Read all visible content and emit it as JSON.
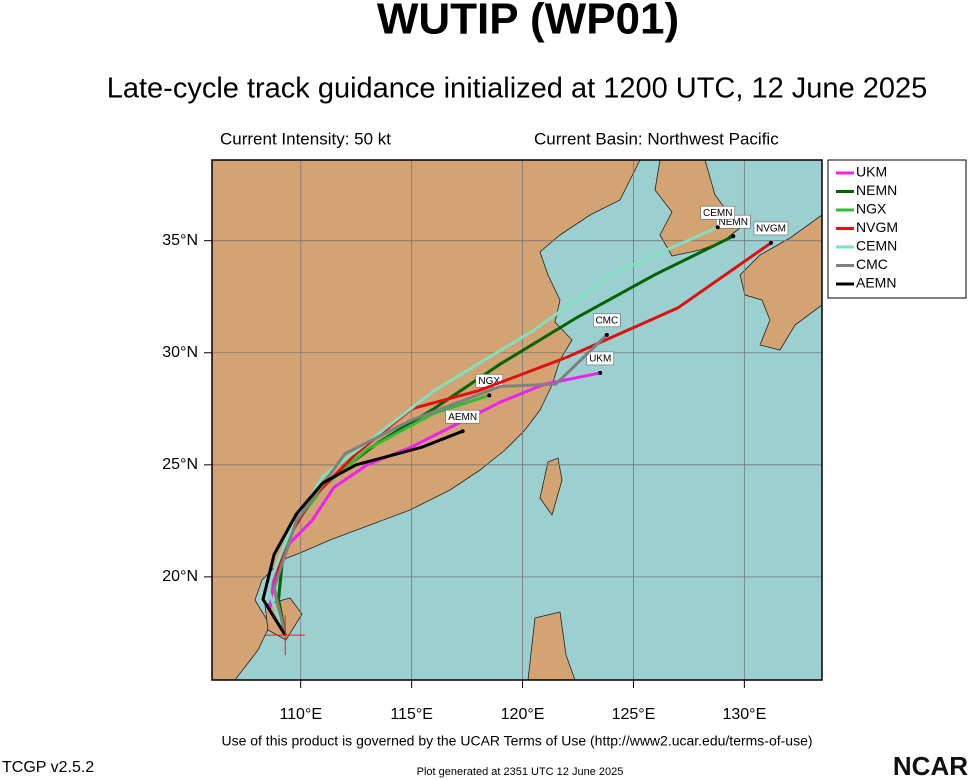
{
  "chart_data": {
    "type": "track-map",
    "title": "WUTIP (WP01)",
    "subtitle": "Late-cycle track guidance initialized at 1200 UTC, 12 June 2025",
    "intensity_text": "Current Intensity: 50 kt",
    "basin_text": "Current Basin: Northwest Pacific",
    "xlim": [
      106,
      133.5
    ],
    "ylim": [
      15.4,
      38.6
    ],
    "xticks": [
      {
        "value": 110,
        "label": "110°E"
      },
      {
        "value": 115,
        "label": "115°E"
      },
      {
        "value": 120,
        "label": "120°E"
      },
      {
        "value": 125,
        "label": "125°E"
      },
      {
        "value": 130,
        "label": "130°E"
      }
    ],
    "yticks": [
      {
        "value": 20,
        "label": "20°N"
      },
      {
        "value": 25,
        "label": "25°N"
      },
      {
        "value": 30,
        "label": "30°N"
      },
      {
        "value": 35,
        "label": "35°N"
      }
    ],
    "grid": true,
    "initial_position": {
      "lon": 109.3,
      "lat": 17.4
    },
    "series": [
      {
        "name": "UKM",
        "color": "#ee22ee",
        "x": [
          109.3,
          108.6,
          108.8,
          109.5,
          110.5,
          111.5,
          113,
          115,
          117,
          119,
          121,
          123.5
        ],
        "values": [
          17.4,
          18.5,
          20,
          21.5,
          22.5,
          24,
          25,
          25.8,
          26.8,
          27.8,
          28.6,
          29.1
        ]
      },
      {
        "name": "NEMN",
        "color": "#006400",
        "x": [
          109.3,
          109,
          109.2,
          110,
          111.5,
          113.5,
          116,
          119,
          122.5,
          126,
          129.5
        ],
        "values": [
          17.4,
          19,
          21,
          23,
          24.5,
          26,
          27.5,
          29.5,
          31.6,
          33.5,
          35.2
        ]
      },
      {
        "name": "NGX",
        "color": "#33bb33",
        "x": [
          109.3,
          108.8,
          109.5,
          111,
          113,
          116,
          118.5
        ],
        "values": [
          17.4,
          19.5,
          22,
          24,
          25.7,
          27.3,
          28.1
        ]
      },
      {
        "name": "NVGM",
        "color": "#e01010",
        "x": [
          109.3,
          108.8,
          109.3,
          110.5,
          112.5,
          115,
          118,
          122,
          127,
          131.2
        ],
        "values": [
          17.4,
          19.5,
          21.5,
          23.5,
          25.5,
          27.5,
          28.3,
          29.8,
          32,
          34.9
        ]
      },
      {
        "name": "CEMN",
        "color": "#80e0c0",
        "x": [
          109.3,
          108.5,
          109.5,
          111,
          113,
          116,
          120.5,
          124,
          128.8
        ],
        "values": [
          17.4,
          19.5,
          22,
          24.5,
          26,
          28.3,
          31,
          33.5,
          35.6
        ]
      },
      {
        "name": "CMC",
        "color": "#808080",
        "x": [
          109.3,
          108.8,
          109.8,
          112,
          115,
          119,
          121.5,
          123.8
        ],
        "values": [
          17.4,
          19.5,
          22.5,
          25.5,
          27,
          28.5,
          28.6,
          30.8
        ]
      },
      {
        "name": "AEMN",
        "color": "#000000",
        "x": [
          109.3,
          108.3,
          108.8,
          109.8,
          111,
          112.5,
          115.5,
          117.3
        ],
        "values": [
          17.4,
          19,
          21,
          22.8,
          24.2,
          25,
          25.8,
          26.5
        ]
      }
    ]
  },
  "footer": {
    "terms": "Use of this product is governed by the UCAR Terms of Use (http://www2.ucar.edu/terms-of-use)",
    "version": "TCGP v2.5.2",
    "generated": "Plot generated at 2351 UTC   12 June 2025",
    "logo": "NCAR"
  }
}
